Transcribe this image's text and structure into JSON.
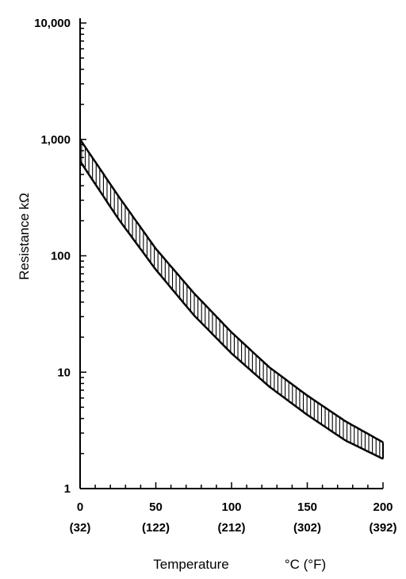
{
  "chart_data": {
    "type": "area",
    "title": "",
    "xlabel": "Temperature",
    "xlabel_units": "°C (°F)",
    "ylabel": "Resistance kΩ",
    "y_scale": "log",
    "xlim": [
      0,
      200
    ],
    "ylim": [
      1,
      10000
    ],
    "grid": false,
    "legend": "none",
    "x_ticks": [
      {
        "value": 0,
        "label": "0",
        "sublabel": "(32)"
      },
      {
        "value": 50,
        "label": "50",
        "sublabel": "(122)"
      },
      {
        "value": 100,
        "label": "100",
        "sublabel": "(212)"
      },
      {
        "value": 150,
        "label": "150",
        "sublabel": "(302)"
      },
      {
        "value": 200,
        "label": "200",
        "sublabel": "(392)"
      }
    ],
    "y_ticks": [
      {
        "value": 1,
        "label": "1"
      },
      {
        "value": 10,
        "label": "10"
      },
      {
        "value": 100,
        "label": "100"
      },
      {
        "value": 1000,
        "label": "1,000"
      },
      {
        "value": 10000,
        "label": "10,000"
      }
    ],
    "series": [
      {
        "x": [
          0,
          25,
          50,
          75,
          100,
          125,
          150,
          175,
          200
        ],
        "upper": [
          1000,
          330,
          115,
          48,
          22,
          11,
          6.3,
          3.8,
          2.5
        ],
        "lower": [
          650,
          210,
          76,
          31,
          14.5,
          7.5,
          4.3,
          2.6,
          1.8
        ]
      }
    ]
  }
}
